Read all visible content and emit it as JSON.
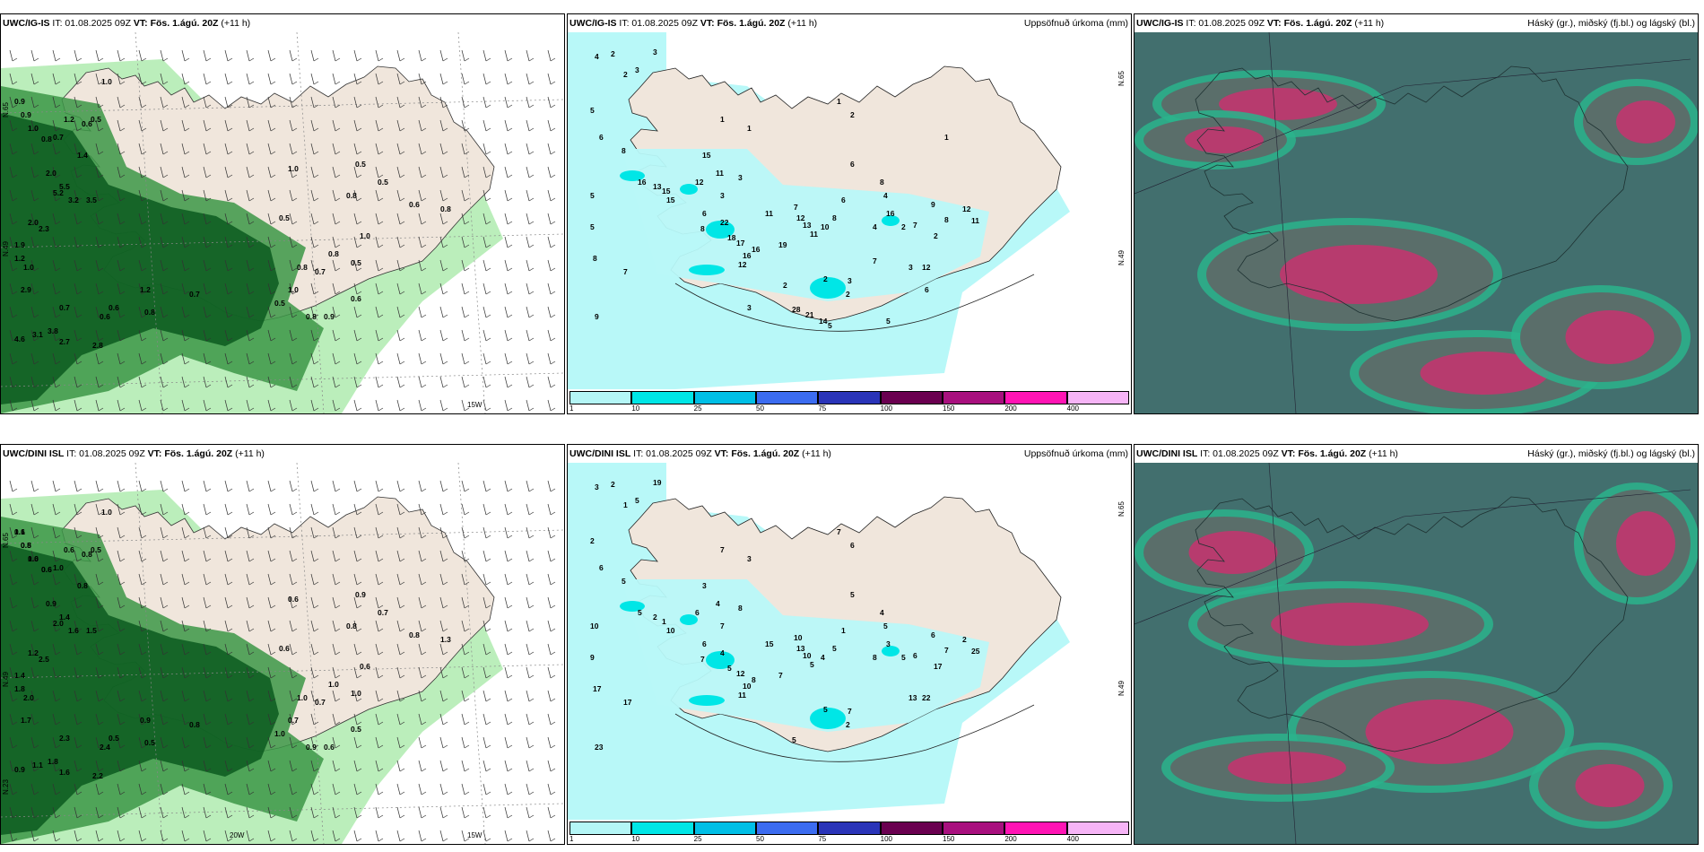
{
  "panels": [
    {
      "id": "top-left",
      "model": "UWC/IG-IS",
      "it": "IT: 01.08.2025 09Z",
      "vt": "VT: Fös. 1.ágú. 20Z",
      "lead": "(+11 h)",
      "title_right": "",
      "kind": "wind",
      "labels": [
        "0.9",
        "0.9",
        "1.0",
        "0.8",
        "0.7",
        "1.2",
        "0.6",
        "0.5",
        "1.0",
        "1.4",
        "2.0",
        "5.5",
        "5.2",
        "3.2",
        "3.5",
        "2.0",
        "2.3",
        "1.9",
        "1.2",
        "1.0",
        "2.9",
        "0.7",
        "0.6",
        "4.6",
        "3.1",
        "3.8",
        "2.7",
        "2.8",
        "0.6",
        "0.8",
        "1.2",
        "0.7",
        "0.5",
        "1.0",
        "0.8",
        "0.9",
        "1.0",
        "0.5",
        "0.6",
        "0.8",
        "0.8",
        "0.5",
        "1.0",
        "0.5",
        "0.6",
        "0.7",
        "0.8",
        "0.8",
        "0.5"
      ],
      "lon_label": "15W",
      "lat_labels": [
        "N.65",
        "N.49"
      ]
    },
    {
      "id": "top-middle",
      "model": "UWC/IG-IS",
      "it": "IT: 01.08.2025 09Z",
      "vt": "VT: Fös. 1.ágú. 20Z",
      "lead": "(+11 h)",
      "title_right": "Uppsöfnuð úrkoma (mm)",
      "kind": "precip",
      "labels": [
        "4",
        "2",
        "2",
        "3",
        "5",
        "6",
        "8",
        "5",
        "5",
        "8",
        "7",
        "9",
        "3",
        "1",
        "15",
        "16",
        "13",
        "15",
        "15",
        "12",
        "11",
        "3",
        "3",
        "6",
        "8",
        "22",
        "18",
        "17",
        "16",
        "16",
        "12",
        "19",
        "11",
        "7",
        "12",
        "13",
        "11",
        "10",
        "8",
        "6",
        "16",
        "8",
        "2",
        "1",
        "2",
        "1",
        "6",
        "4",
        "4",
        "7",
        "9",
        "8",
        "12",
        "11",
        "12",
        "2",
        "3",
        "2",
        "3",
        "2",
        "28",
        "21",
        "14",
        "5",
        "5",
        "6",
        "7",
        "2",
        "3",
        "1"
      ],
      "lat_labels": [
        "N.65",
        "N.49"
      ]
    },
    {
      "id": "top-right",
      "model": "UWC/IG-IS",
      "it": "IT: 01.08.2025 09Z",
      "vt": "VT: Fös. 1.ágú. 20Z",
      "lead": "(+11 h)",
      "title_right": "Háský (gr.), miðský (fj.bl.) og lágský (bl.)",
      "kind": "cloud"
    },
    {
      "id": "bottom-left",
      "model": "UWC/DINI ISL",
      "it": "IT: 01.08.2025 09Z",
      "vt": "VT: Fös. 1.ágú. 20Z",
      "lead": "(+11 h)",
      "title_right": "",
      "kind": "wind",
      "labels": [
        "1.1",
        "0.8",
        "1.0",
        "0.6",
        "1.0",
        "0.6",
        "0.8",
        "0.5",
        "1.0",
        "0.8",
        "0.9",
        "1.4",
        "2.0",
        "1.6",
        "1.5",
        "1.2",
        "2.5",
        "1.4",
        "1.8",
        "2.0",
        "1.7",
        "2.3",
        "2.4",
        "0.9",
        "1.1",
        "1.8",
        "1.6",
        "2.2",
        "0.5",
        "0.5",
        "0.9",
        "0.8",
        "1.0",
        "0.7",
        "0.9",
        "0.6",
        "0.6",
        "0.7",
        "0.8",
        "1.3",
        "0.8",
        "0.9",
        "0.6",
        "0.6",
        "0.5",
        "0.7",
        "1.0",
        "1.0",
        "1.0",
        "0.6",
        "0.5",
        "0.6",
        "0.6"
      ],
      "lon_label": "15W",
      "lon_label2": "20W",
      "lat_labels": [
        "N.65",
        "N.49",
        "N.23"
      ]
    },
    {
      "id": "bottom-middle",
      "model": "UWC/DINI ISL",
      "it": "IT: 01.08.2025 09Z",
      "vt": "VT: Fös. 1.ágú. 20Z",
      "lead": "(+11 h)",
      "title_right": "Uppsöfnuð úrkoma (mm)",
      "kind": "precip",
      "labels": [
        "3",
        "2",
        "1",
        "5",
        "2",
        "6",
        "5",
        "10",
        "9",
        "17",
        "17",
        "23",
        "19",
        "7",
        "3",
        "5",
        "2",
        "1",
        "10",
        "6",
        "4",
        "7",
        "8",
        "6",
        "7",
        "4",
        "5",
        "12",
        "10",
        "8",
        "11",
        "7",
        "15",
        "10",
        "13",
        "10",
        "5",
        "4",
        "4",
        "1",
        "3",
        "5",
        "5",
        "3",
        "6",
        "7",
        "5",
        "5",
        "8",
        "6",
        "6",
        "7",
        "2",
        "25",
        "22",
        "17",
        "13",
        "5",
        "7",
        "2",
        "5"
      ],
      "lat_labels": [
        "N.65",
        "N.49"
      ]
    },
    {
      "id": "bottom-right",
      "model": "UWC/DINI ISL",
      "it": "IT: 01.08.2025 09Z",
      "vt": "VT: Fös. 1.ágú. 20Z",
      "lead": "(+11 h)",
      "title_right": "Háský (gr.), miðský (fj.bl.) og lágský (bl.)",
      "kind": "cloud"
    }
  ],
  "colorbar": {
    "ticks": [
      "1",
      "10",
      "25",
      "50",
      "75",
      "100",
      "150",
      "200",
      "400"
    ],
    "colors": [
      "#b4f6f6",
      "#00e6e6",
      "#00bfe6",
      "#3c6cf0",
      "#2a34b8",
      "#6a0050",
      "#a8107e",
      "#ff14b4",
      "#f6b4f6"
    ]
  },
  "colors": {
    "land": "#f0e6dc",
    "sea_precip": "#b8f8f8",
    "cloud_bg": "#3a6464",
    "cloud_high": "#c8326e",
    "cloud_mid": "#2ab48c",
    "wind_green_dark": "#0a5a1e",
    "wind_green_mid": "#3c9646",
    "wind_green_light": "#b4ecb4"
  }
}
